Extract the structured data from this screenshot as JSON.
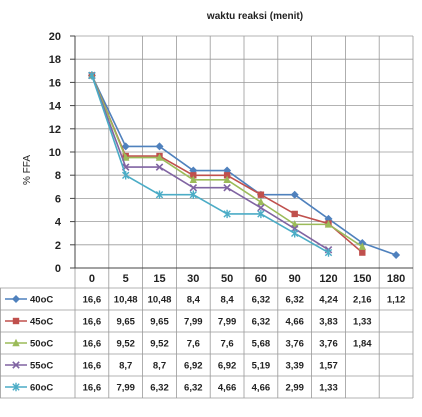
{
  "chart_data": {
    "type": "line",
    "title": "waktu reaksi (menit)",
    "xlabel": "",
    "ylabel": "% FFA",
    "categories": [
      "0",
      "5",
      "15",
      "30",
      "50",
      "60",
      "90",
      "120",
      "150",
      "180"
    ],
    "ylim": [
      0,
      20
    ],
    "yticks": [
      0,
      2,
      4,
      6,
      8,
      10,
      12,
      14,
      16,
      18,
      20
    ],
    "grid": true,
    "legend": "data-table",
    "series": [
      {
        "name": "40oC",
        "color": "#4f81bd",
        "marker": "diamond",
        "values": [
          16.6,
          10.48,
          10.48,
          8.4,
          8.4,
          6.32,
          6.32,
          4.24,
          2.16,
          1.12
        ],
        "labels": [
          "16,6",
          "10,48",
          "10,48",
          "8,4",
          "8,4",
          "6,32",
          "6,32",
          "4,24",
          "2,16",
          "1,12"
        ]
      },
      {
        "name": "45oC",
        "color": "#c0504d",
        "marker": "square",
        "values": [
          16.6,
          9.65,
          9.65,
          7.99,
          7.99,
          6.32,
          4.66,
          3.83,
          1.33,
          null
        ],
        "labels": [
          "16,6",
          "9,65",
          "9,65",
          "7,99",
          "7,99",
          "6,32",
          "4,66",
          "3,83",
          "1,33",
          ""
        ]
      },
      {
        "name": "50oC",
        "color": "#9bbb59",
        "marker": "triangle",
        "values": [
          16.6,
          9.52,
          9.52,
          7.6,
          7.6,
          5.68,
          3.76,
          3.76,
          1.84,
          null
        ],
        "labels": [
          "16,6",
          "9,52",
          "9,52",
          "7,6",
          "7,6",
          "5,68",
          "3,76",
          "3,76",
          "1,84",
          ""
        ]
      },
      {
        "name": "55oC",
        "color": "#8064a2",
        "marker": "x",
        "values": [
          16.6,
          8.7,
          8.7,
          6.92,
          6.92,
          5.19,
          3.39,
          1.57,
          null,
          null
        ],
        "labels": [
          "16,6",
          "8,7",
          "8,7",
          "6,92",
          "6,92",
          "5,19",
          "3,39",
          "1,57",
          "",
          ""
        ]
      },
      {
        "name": "60oC",
        "color": "#4bacc6",
        "marker": "star",
        "values": [
          16.6,
          7.99,
          6.32,
          6.32,
          4.66,
          4.66,
          2.99,
          1.33,
          null,
          null
        ],
        "labels": [
          "16,6",
          "7,99",
          "6,32",
          "6,32",
          "4,66",
          "4,66",
          "2,99",
          "1,33",
          "",
          ""
        ]
      }
    ]
  }
}
